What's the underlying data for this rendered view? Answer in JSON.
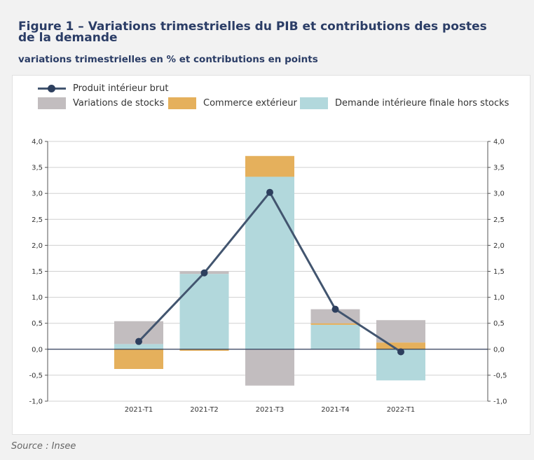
{
  "title": "Figure 1 – Variations trimestrielles du PIB et contributions des postes de la demande",
  "subtitle": "variations trimestrielles en % et contributions en points",
  "source": "Source : Insee",
  "chart_data": {
    "type": "bar",
    "stacked": true,
    "categories": [
      "2021-T1",
      "2021-T2",
      "2021-T3",
      "2021-T4",
      "2022-T1"
    ],
    "series": [
      {
        "name": "Demande intérieure finale hors stocks",
        "kind": "bar",
        "color": "#b2d8dc",
        "values": [
          0.1,
          1.45,
          3.32,
          0.47,
          -0.6
        ]
      },
      {
        "name": "Commerce extérieur",
        "kind": "bar",
        "color": "#e5b05c",
        "values": [
          -0.38,
          -0.03,
          0.4,
          0.03,
          0.13
        ]
      },
      {
        "name": "Variations de stocks",
        "kind": "bar",
        "color": "#c2bdbf",
        "values": [
          0.44,
          0.05,
          -0.7,
          0.27,
          0.43
        ]
      },
      {
        "name": "Produit intérieur brut",
        "kind": "line",
        "color": "#42556f",
        "values": [
          0.15,
          1.47,
          3.02,
          0.77,
          -0.05
        ]
      }
    ],
    "legend": [
      "Produit intérieur brut",
      "Variations de stocks",
      "Commerce extérieur",
      "Demande intérieure finale hors stocks"
    ],
    "yticks": [
      "4,0",
      "3,5",
      "3,0",
      "2,5",
      "2,0",
      "1,5",
      "1,0",
      "0,5",
      "0,0",
      "-0,5",
      "-1,0"
    ],
    "ylim": [
      -1.0,
      4.0
    ],
    "grid": true,
    "dual_axis": true
  }
}
